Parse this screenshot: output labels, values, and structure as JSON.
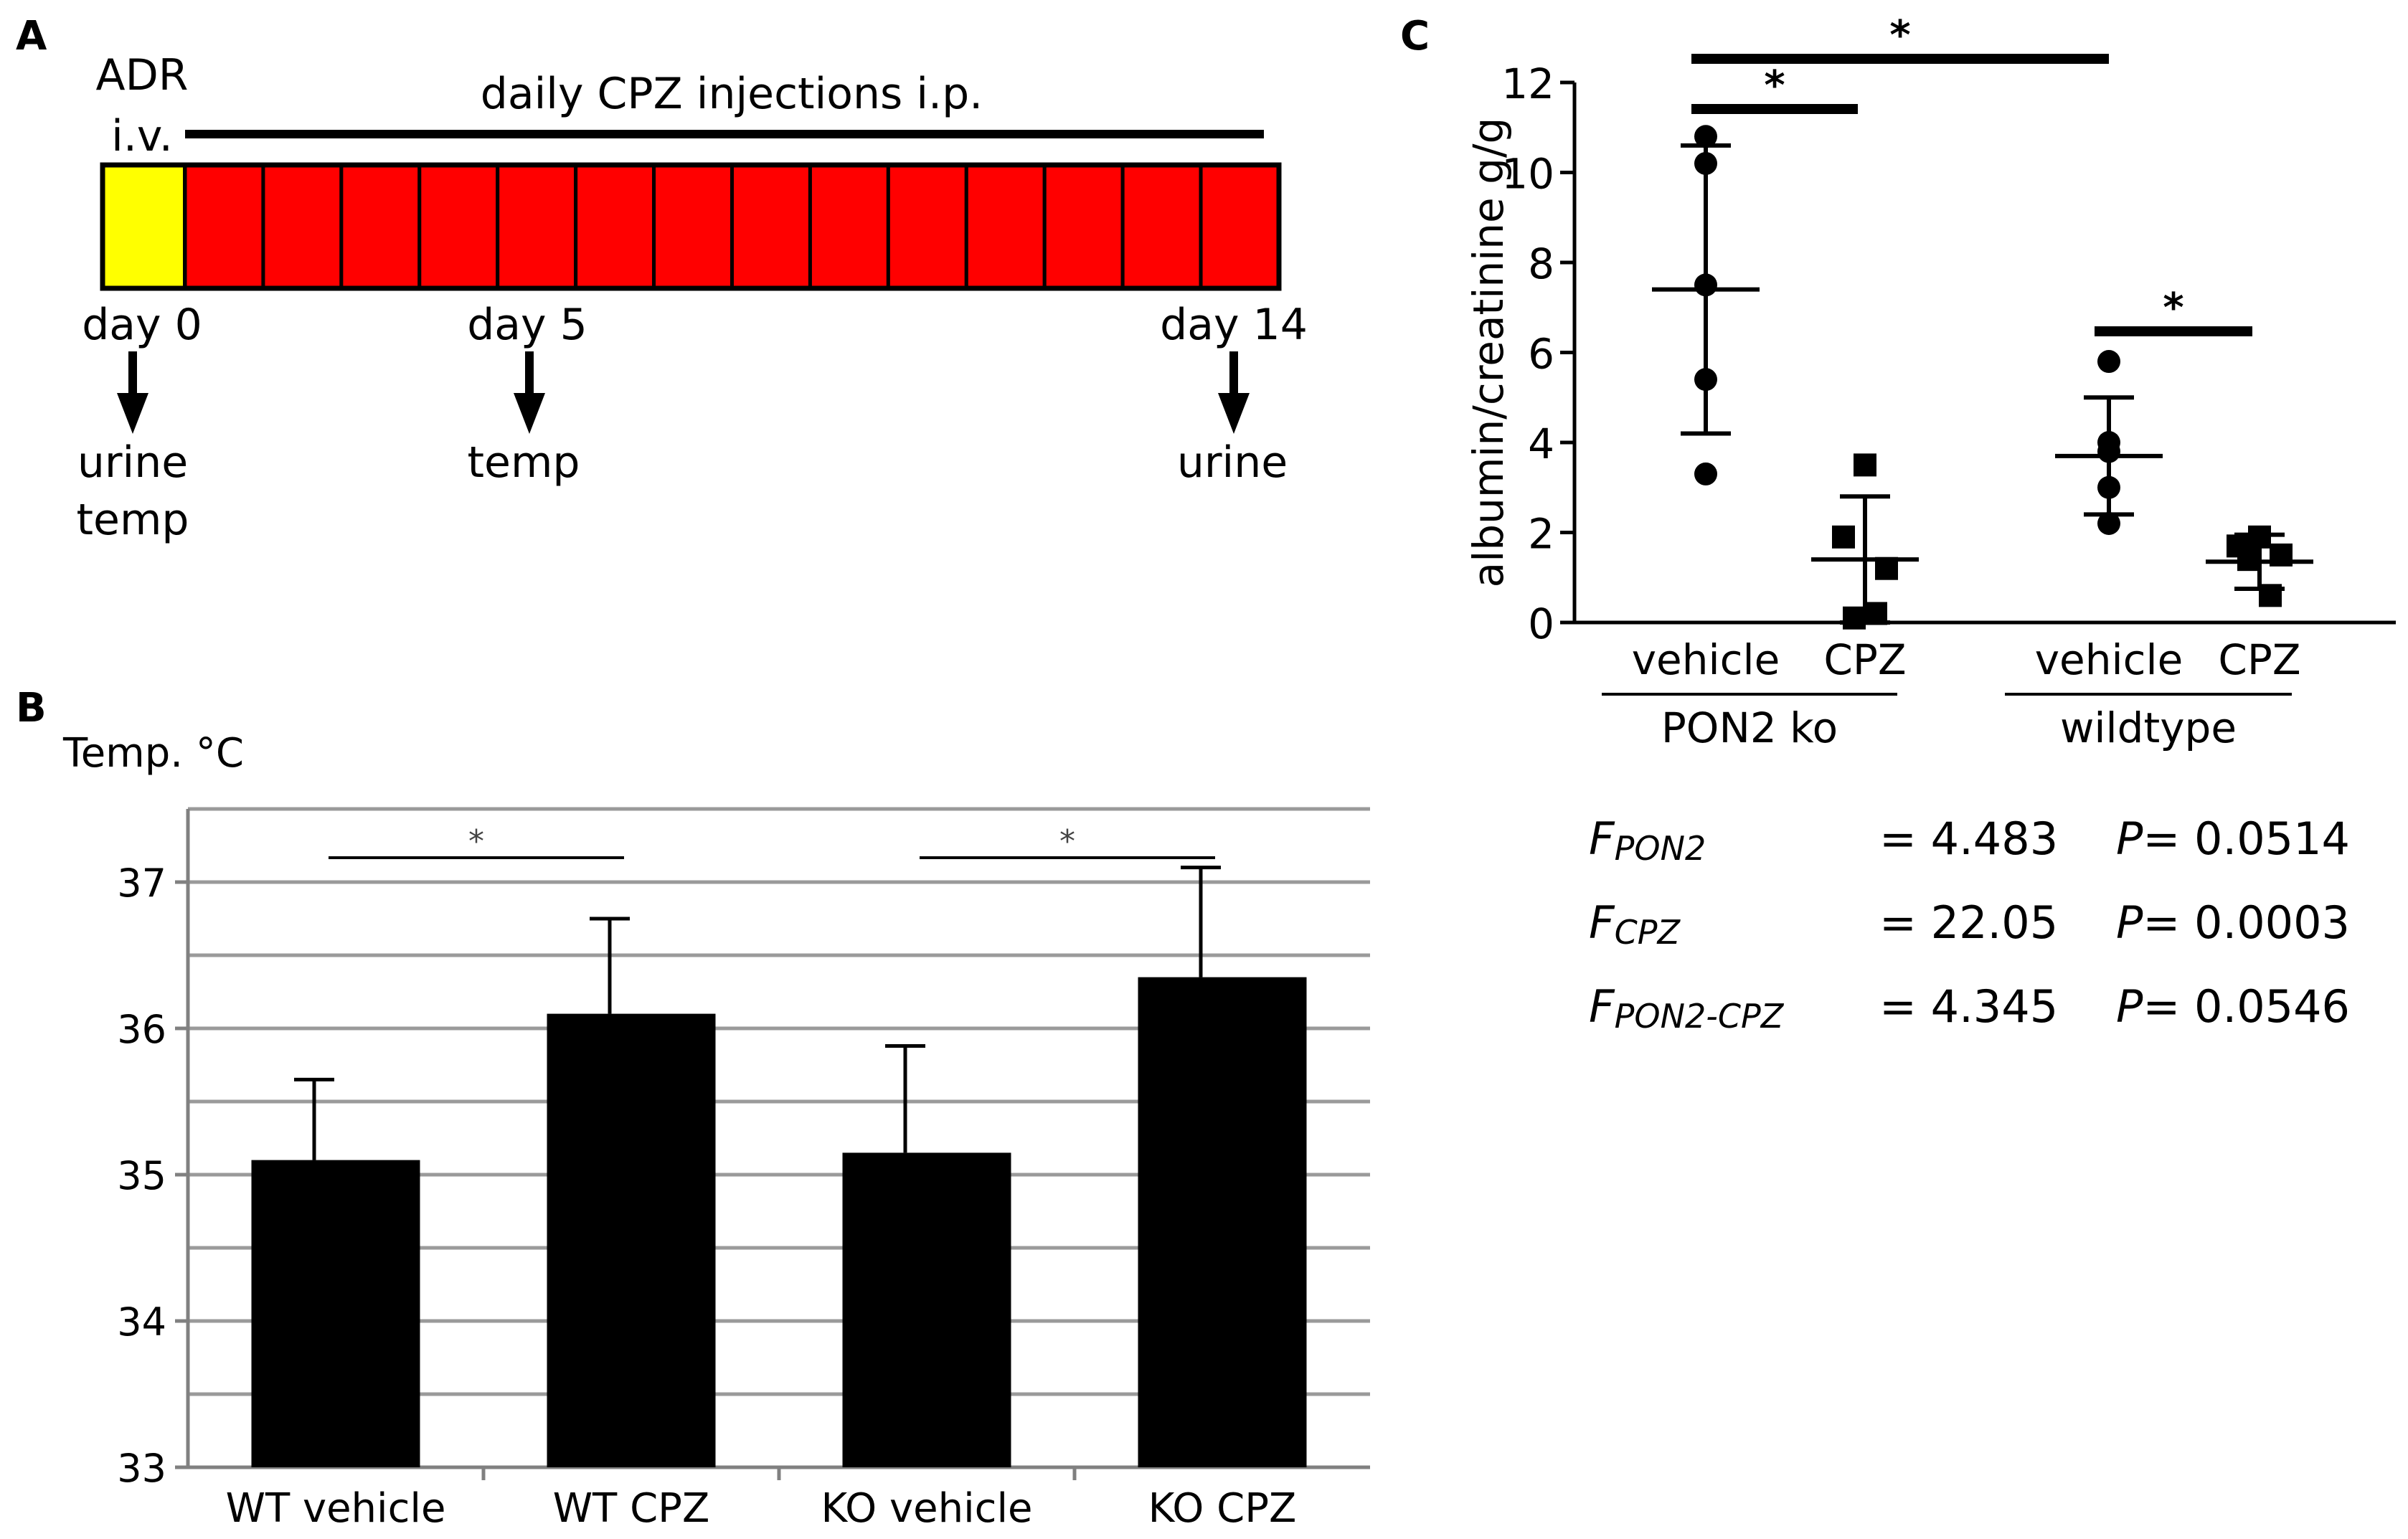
{
  "panels": {
    "a": "A",
    "b": "B",
    "c": "C"
  },
  "timeline": {
    "adr_label_1": "ADR",
    "adr_label_2": "i.v.",
    "injections_label": "daily CPZ injections i.p.",
    "days": [
      "day 0",
      "day 5",
      "day 14"
    ],
    "samples": [
      {
        "lines": [
          "urine",
          "temp"
        ]
      },
      {
        "lines": [
          "temp"
        ]
      },
      {
        "lines": [
          "urine"
        ]
      }
    ],
    "colors": {
      "adr": "#ffff00",
      "cpz": "#ff0000"
    },
    "cpz_days": 14
  },
  "chart_data": [
    {
      "id": "B",
      "type": "bar",
      "title": "",
      "ylabel": "Temp. °C",
      "xlabel": "",
      "categories": [
        "WT vehicle",
        "WT CPZ",
        "KO vehicle",
        "KO CPZ"
      ],
      "values": [
        35.1,
        36.1,
        35.15,
        36.35
      ],
      "errors": [
        0.55,
        0.65,
        0.73,
        0.75
      ],
      "ylim": [
        33,
        37.5
      ],
      "yticks": [
        33,
        34,
        35,
        36,
        37
      ],
      "grid": true,
      "bar_color": "#000000",
      "significance": [
        {
          "from": 0,
          "to": 1,
          "label": "*"
        },
        {
          "from": 2,
          "to": 3,
          "label": "*"
        }
      ]
    },
    {
      "id": "C",
      "type": "scatter",
      "ylabel": "albumin/creatinine g/g",
      "ylim": [
        0,
        12
      ],
      "yticks": [
        0,
        2,
        4,
        6,
        8,
        10,
        12
      ],
      "categories": [
        "vehicle",
        "CPZ",
        "vehicle",
        "CPZ"
      ],
      "groups": [
        {
          "label": "PON2 ko",
          "categories": [
            0,
            1
          ]
        },
        {
          "label": "wildtype",
          "categories": [
            2,
            3
          ]
        }
      ],
      "series": [
        {
          "category": 0,
          "marker": "circle",
          "points": [
            10.8,
            10.2,
            7.5,
            5.4,
            3.3
          ],
          "mean": 7.4,
          "sd": 3.2
        },
        {
          "category": 1,
          "marker": "square",
          "points": [
            3.5,
            1.9,
            1.2,
            0.1,
            0.2
          ],
          "mean": 1.4,
          "sd": 1.4
        },
        {
          "category": 2,
          "marker": "circle",
          "points": [
            5.8,
            4.0,
            3.8,
            3.0,
            2.2
          ],
          "mean": 3.7,
          "sd": 1.3
        },
        {
          "category": 3,
          "marker": "square",
          "points": [
            1.9,
            1.7,
            1.5,
            1.4,
            0.6
          ],
          "mean": 1.35,
          "sd": 0.6
        }
      ],
      "significance": [
        {
          "from": 0,
          "to": 2,
          "label": "*"
        },
        {
          "from": 0,
          "to": 1,
          "label": "*"
        },
        {
          "from": 2,
          "to": 3,
          "label": "*"
        }
      ]
    }
  ],
  "stats": [
    {
      "f_sub": "PON2",
      "f_value": "= 4.483",
      "p_value": "= 0.0514"
    },
    {
      "f_sub": "CPZ",
      "f_value": "= 22.05",
      "p_value": "= 0.0003"
    },
    {
      "f_sub": "PON2-CPZ",
      "f_value": "= 4.345",
      "p_value": "= 0.0546"
    }
  ],
  "stat_letters": {
    "f": "F",
    "p": "P"
  }
}
